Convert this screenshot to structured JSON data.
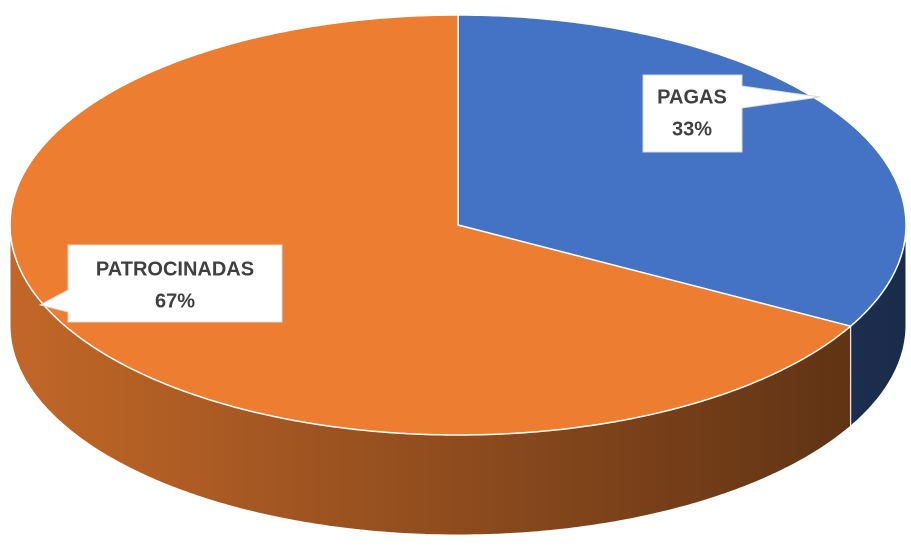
{
  "chart_data": {
    "type": "pie3d",
    "categories": [
      "PAGAS",
      "PATROCINADAS"
    ],
    "values": [
      33,
      67
    ],
    "value_labels": [
      "33%",
      "67%"
    ],
    "colors": [
      "#4472c4",
      "#ed7d31"
    ]
  }
}
